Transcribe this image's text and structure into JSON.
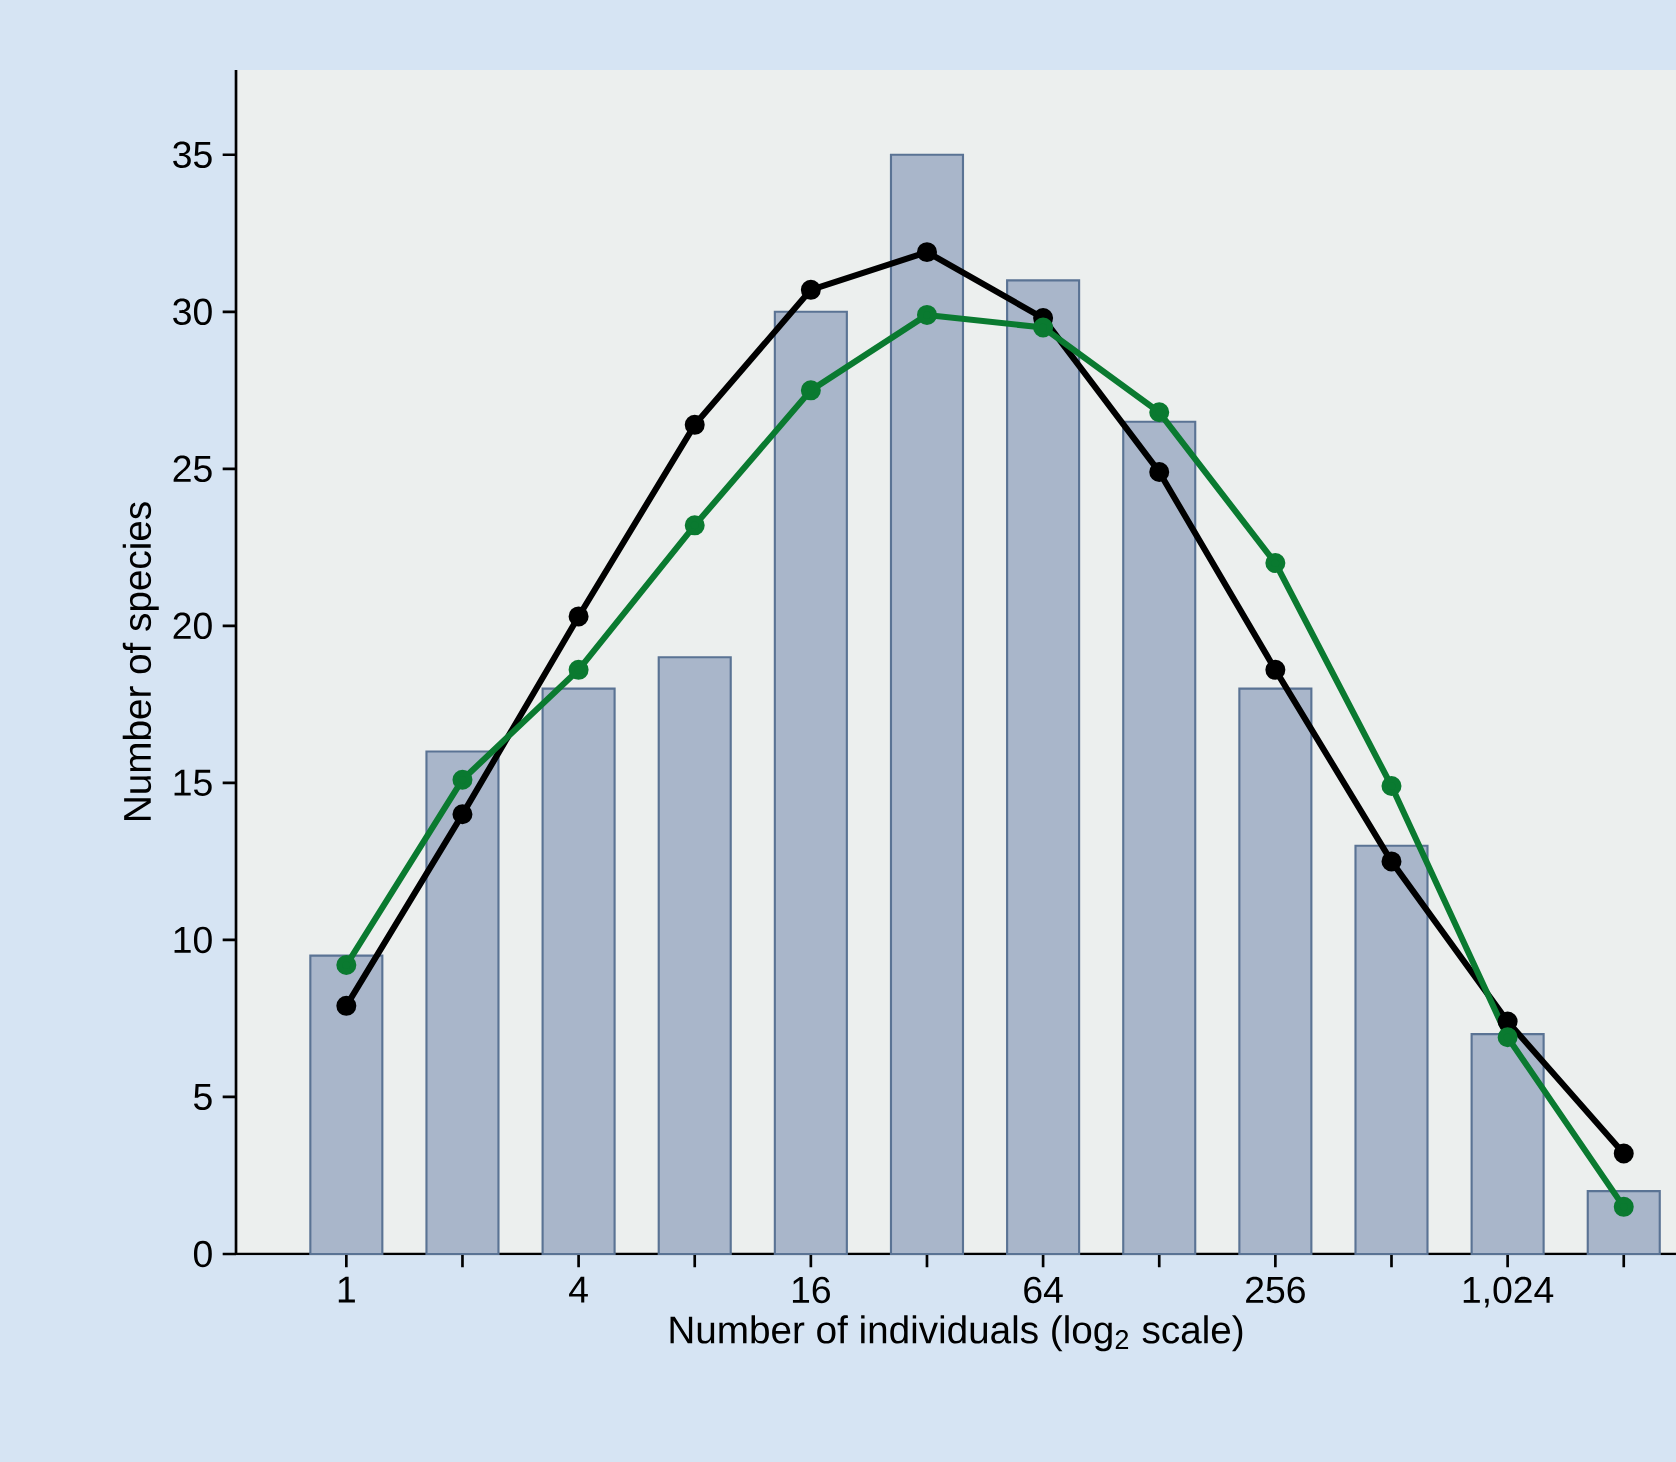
{
  "chart_data": {
    "type": "bar",
    "xlabel": "Number of individuals (log$_{2}$ scale)",
    "ylabel": "Number of species",
    "categories": [
      "1",
      null,
      "4",
      null,
      "16",
      null,
      "64",
      null,
      "256",
      null,
      "1,024",
      null
    ],
    "series": [
      {
        "color": "#a9b6ca",
        "values": [
          9.5,
          16,
          18,
          19,
          30,
          35,
          31,
          26.5,
          18,
          13,
          7,
          2
        ]
      },
      {
        "type": "line",
        "color": "#000000",
        "values": [
          7.9,
          14,
          20.3,
          26.4,
          30.7,
          31.9,
          29.8,
          24.9,
          18.6,
          12.5,
          7.4,
          3.2
        ]
      },
      {
        "type": "line",
        "color": "#0a7a30",
        "values": [
          9.2,
          15.1,
          18.6,
          23.2,
          27.5,
          29.9,
          29.5,
          26.8,
          22,
          14.9,
          6.9,
          1.5
        ]
      }
    ],
    "ylim": [
      0,
      37.7
    ],
    "yticks": [
      0,
      5,
      10,
      15,
      20,
      25,
      30,
      35
    ],
    "marker": "circle"
  }
}
